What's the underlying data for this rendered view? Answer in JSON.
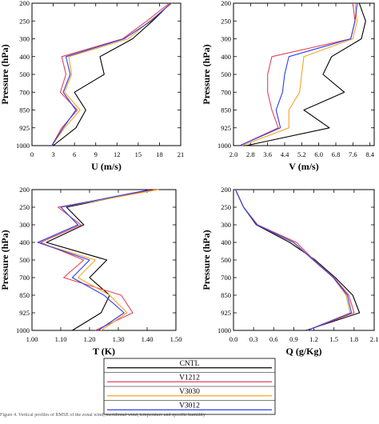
{
  "colors": {
    "CNTL": "#000000",
    "V1212": "#e8415a",
    "V3030": "#f5a623",
    "V3012": "#2b3ef0"
  },
  "legend": [
    "CNTL",
    "V1212",
    "V3030",
    "V3012"
  ],
  "caption": "Figure 4. Vertical profiles of RMSE of the zonal wind, meridional wind, temperature and specific humidity",
  "chart_data": [
    {
      "type": "line",
      "ylabel": "Pressure (hPa)",
      "xlabel": "U (m/s)",
      "xlim": [
        0,
        21
      ],
      "ylim": [
        200,
        1000
      ],
      "y_reversed": true,
      "xticks": [
        "0",
        "3",
        "6",
        "9",
        "12",
        "15",
        "18",
        "21"
      ],
      "yticks": [
        "200",
        "250",
        "300",
        "400",
        "500",
        "700",
        "850",
        "925",
        "1000"
      ],
      "levels": [
        1000,
        925,
        850,
        700,
        500,
        400,
        300,
        250,
        200
      ],
      "series": [
        {
          "name": "CNTL",
          "values": [
            3.0,
            6.2,
            7.6,
            6.0,
            10.2,
            9.6,
            14.2,
            17.0,
            19.6
          ]
        },
        {
          "name": "V1212",
          "values": [
            2.8,
            4.2,
            6.4,
            4.0,
            4.8,
            4.2,
            12.8,
            16.2,
            19.4
          ]
        },
        {
          "name": "V3030",
          "values": [
            2.8,
            4.6,
            6.8,
            4.6,
            5.6,
            5.2,
            13.6,
            16.6,
            19.8
          ]
        },
        {
          "name": "V3012",
          "values": [
            2.8,
            4.4,
            6.2,
            4.4,
            5.4,
            4.8,
            13.0,
            16.8,
            19.6
          ]
        }
      ]
    },
    {
      "type": "line",
      "ylabel": "Pressure (hPa)",
      "xlabel": "V (m/s)",
      "xlim": [
        2.0,
        8.6
      ],
      "ylim": [
        200,
        1000
      ],
      "y_reversed": true,
      "xticks": [
        "2.0",
        "2.8",
        "3.6",
        "4.4",
        "5.2",
        "6.0",
        "6.8",
        "7.6",
        "8.4"
      ],
      "yticks": [
        "200",
        "250",
        "300",
        "400",
        "500",
        "700",
        "850",
        "925",
        "1000"
      ],
      "levels": [
        1000,
        925,
        850,
        700,
        500,
        400,
        300,
        250,
        200
      ],
      "series": [
        {
          "name": "CNTL",
          "values": [
            2.6,
            6.5,
            5.3,
            7.2,
            6.2,
            6.6,
            8.0,
            8.2,
            7.9
          ]
        },
        {
          "name": "V1212",
          "values": [
            2.3,
            4.1,
            3.8,
            3.6,
            3.6,
            3.8,
            7.5,
            7.7,
            7.6
          ]
        },
        {
          "name": "V3030",
          "values": [
            2.4,
            4.6,
            4.6,
            5.1,
            5.2,
            5.3,
            7.6,
            7.8,
            7.7
          ]
        },
        {
          "name": "V3012",
          "values": [
            2.3,
            4.2,
            4.0,
            4.3,
            4.4,
            4.6,
            7.5,
            7.7,
            7.8
          ]
        }
      ]
    },
    {
      "type": "line",
      "ylabel": "Pressure (hPa)",
      "xlabel": "T (K)",
      "xlim": [
        1.0,
        1.5
      ],
      "ylim": [
        200,
        1000
      ],
      "y_reversed": true,
      "xticks": [
        "1.00",
        "1.10",
        "1.20",
        "1.30",
        "1.40",
        "1.50"
      ],
      "yticks": [
        "200",
        "250",
        "300",
        "400",
        "500",
        "700",
        "850",
        "925",
        "1000"
      ],
      "levels": [
        1000,
        925,
        850,
        700,
        500,
        400,
        300,
        250,
        200
      ],
      "series": [
        {
          "name": "CNTL",
          "values": [
            1.14,
            1.24,
            1.27,
            1.2,
            1.26,
            1.05,
            1.18,
            1.12,
            1.42
          ]
        },
        {
          "name": "V1212",
          "values": [
            1.22,
            1.35,
            1.31,
            1.11,
            1.18,
            1.03,
            1.17,
            1.09,
            1.43
          ]
        },
        {
          "name": "V3030",
          "values": [
            1.24,
            1.33,
            1.27,
            1.16,
            1.22,
            1.02,
            1.16,
            1.1,
            1.44
          ]
        },
        {
          "name": "V3012",
          "values": [
            1.23,
            1.32,
            1.25,
            1.14,
            1.2,
            1.02,
            1.16,
            1.1,
            1.41
          ]
        }
      ]
    },
    {
      "type": "line",
      "ylabel": "Pressure (hPa)",
      "xlabel": "Q (g/Kg)",
      "xlim": [
        0.0,
        2.1
      ],
      "ylim": [
        200,
        1000
      ],
      "y_reversed": true,
      "xticks": [
        "0.0",
        "0.3",
        "0.6",
        "0.9",
        "1.2",
        "1.5",
        "1.8",
        "2.1"
      ],
      "yticks": [
        "200",
        "250",
        "300",
        "400",
        "500",
        "700",
        "850",
        "925",
        "1000"
      ],
      "levels": [
        1000,
        925,
        850,
        700,
        500,
        400,
        300,
        250,
        200
      ],
      "series": [
        {
          "name": "CNTL",
          "values": [
            1.08,
            1.88,
            1.78,
            1.52,
            1.22,
            0.84,
            0.34,
            0.15,
            0.03
          ]
        },
        {
          "name": "V1212",
          "values": [
            1.1,
            1.8,
            1.72,
            1.5,
            1.2,
            0.94,
            0.36,
            0.15,
            0.03
          ]
        },
        {
          "name": "V3030",
          "values": [
            1.1,
            1.74,
            1.68,
            1.49,
            1.19,
            0.89,
            0.35,
            0.15,
            0.03
          ]
        },
        {
          "name": "V3012",
          "values": [
            1.1,
            1.76,
            1.7,
            1.49,
            1.19,
            0.9,
            0.35,
            0.15,
            0.03
          ]
        }
      ]
    }
  ]
}
